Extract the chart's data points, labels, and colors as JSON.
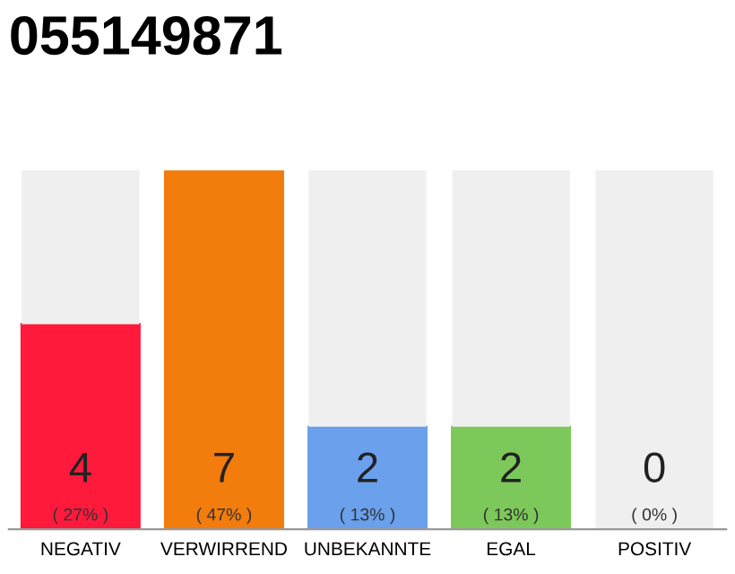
{
  "chart_data": {
    "type": "bar",
    "title": "055149871",
    "stacked": true,
    "categories": [
      "NEGATIV",
      "VERWIRREND",
      "UNBEKANNTE",
      "EGAL",
      "POSITIV"
    ],
    "series": [
      {
        "color": "#ff1a3c",
        "colors": [
          "#ff1a3c",
          "#f27c0c",
          "#6aa0ec",
          "#7dc85a",
          "#c8c8c8"
        ],
        "values": [
          4,
          7,
          2,
          2,
          0
        ],
        "value_labels": [
          "4\n( 27% )",
          "7\n( 47% )",
          "2\n( 13% )",
          "2\n( 13% )",
          "0\n( 0% )"
        ]
      },
      {
        "color": "#efefef",
        "values": [
          3,
          0,
          5,
          5,
          7
        ]
      }
    ],
    "grid": false,
    "legend": false
  }
}
